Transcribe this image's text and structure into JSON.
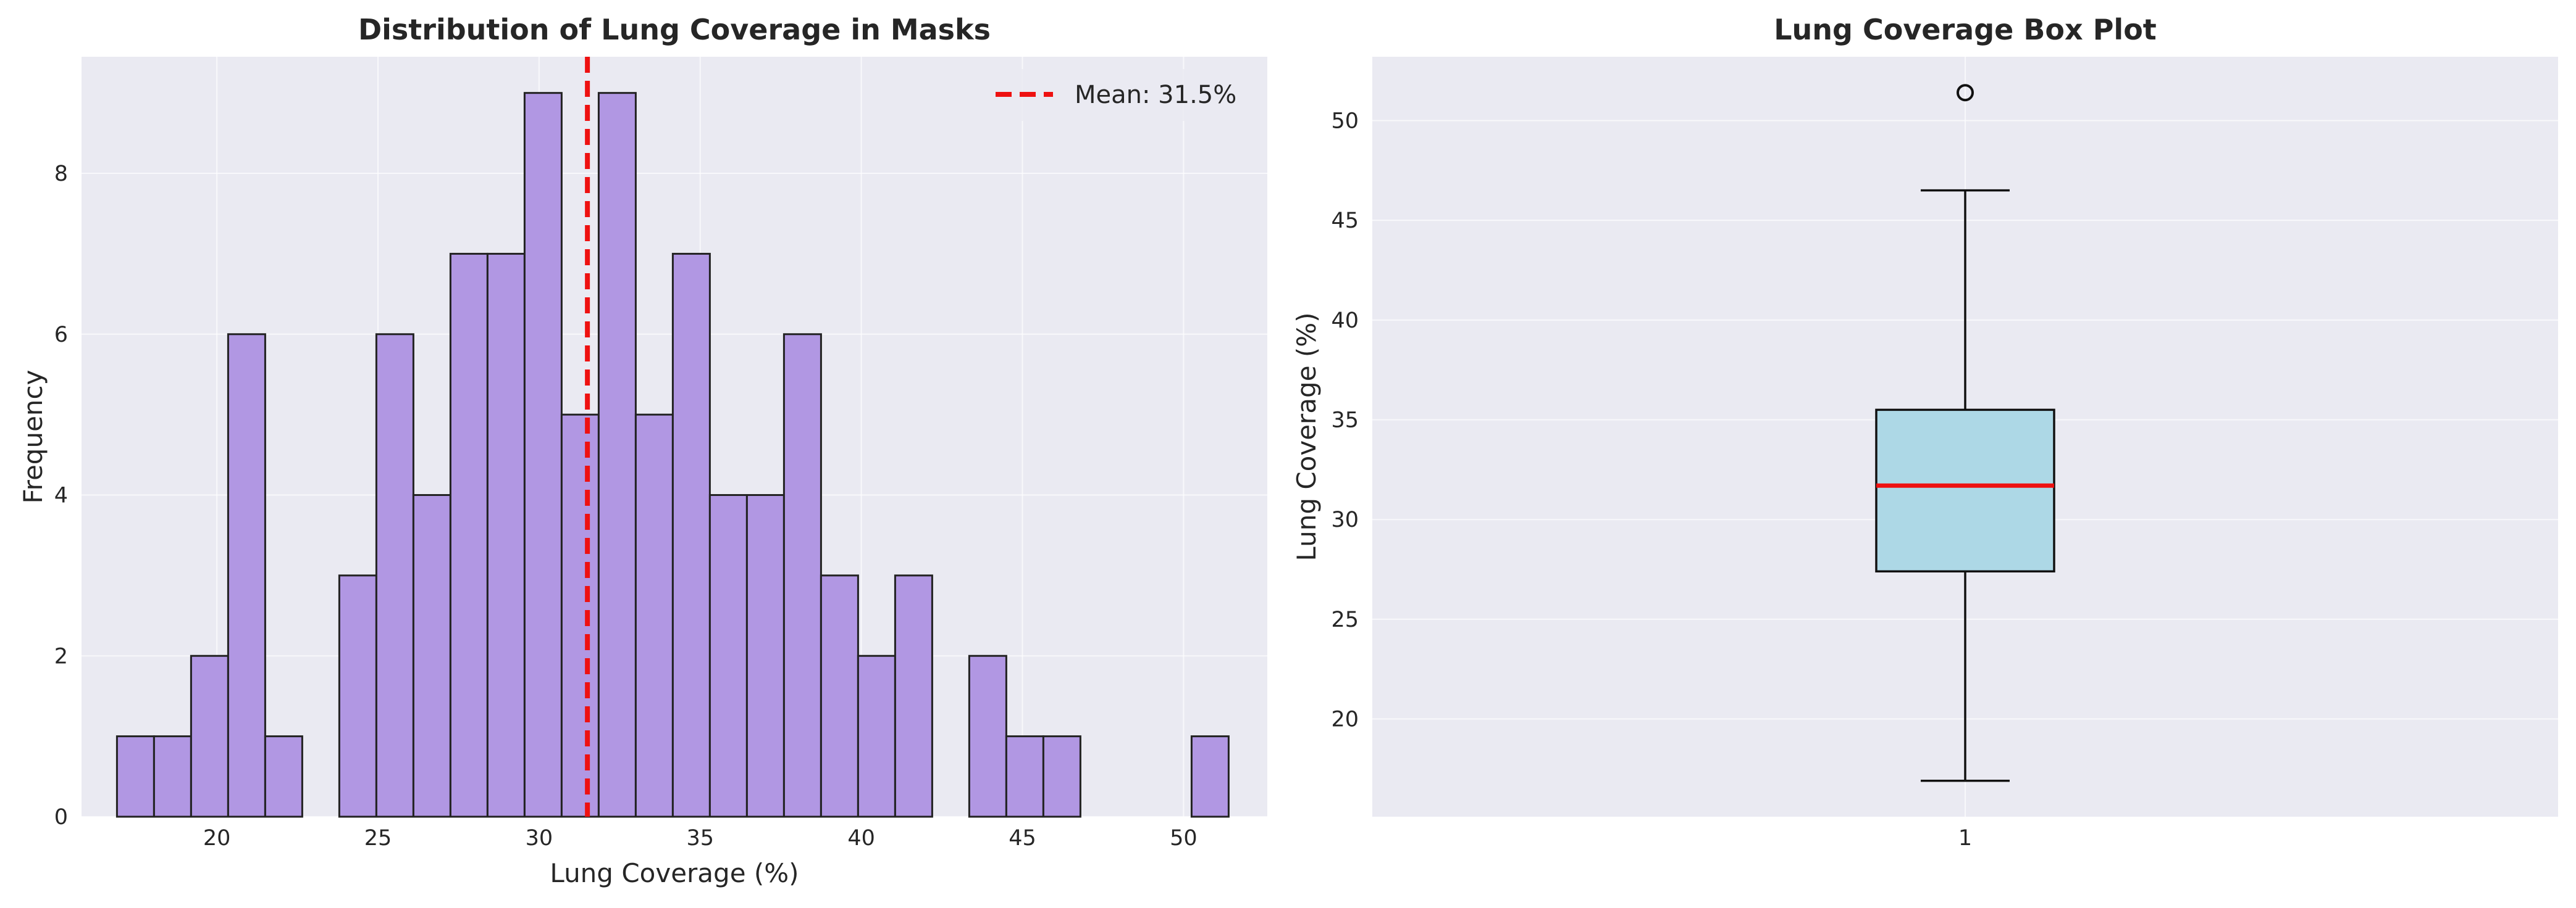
{
  "chart_data": [
    {
      "type": "bar",
      "title": "Distribution of Lung Coverage in Masks",
      "xlabel": "Lung Coverage (%)",
      "ylabel": "Frequency",
      "xlim": [
        15.8,
        52.6
      ],
      "ylim": [
        0,
        9.45
      ],
      "xticks": [
        20,
        25,
        30,
        35,
        40,
        45,
        50
      ],
      "yticks": [
        0,
        2,
        4,
        6,
        8
      ],
      "bin_edges": [
        16.9,
        18.05,
        19.2,
        20.35,
        21.5,
        22.65,
        23.8,
        24.95,
        26.1,
        27.25,
        28.4,
        29.55,
        30.7,
        31.85,
        33.0,
        34.15,
        35.3,
        36.45,
        37.6,
        38.75,
        39.9,
        41.05,
        42.2,
        43.35,
        44.5,
        45.65,
        46.8,
        47.95,
        49.1,
        50.25,
        51.4
      ],
      "counts": [
        1,
        1,
        2,
        6,
        1,
        0,
        3,
        6,
        4,
        7,
        7,
        9,
        5,
        9,
        5,
        7,
        4,
        4,
        6,
        3,
        2,
        3,
        0,
        2,
        1,
        1,
        0,
        0,
        0,
        1
      ],
      "mean_line": {
        "value": 31.5,
        "label": "Mean: 31.5%"
      },
      "legend_position": "top-right",
      "grid": true,
      "colors": {
        "bars": "#b197e3",
        "bar_edge": "#222222",
        "mean_line": "#ee1111",
        "plot_bg": "#eaeaf2"
      }
    },
    {
      "type": "box",
      "title": "Lung Coverage Box Plot",
      "xlabel": "",
      "ylabel": "Lung Coverage (%)",
      "categories": [
        "1"
      ],
      "ylim": [
        15.1,
        53.2
      ],
      "yticks": [
        20,
        25,
        30,
        35,
        40,
        45,
        50
      ],
      "box": {
        "whisker_low": 16.9,
        "q1": 27.4,
        "median": 31.7,
        "q3": 35.5,
        "whisker_high": 46.5,
        "outliers": [
          51.4
        ]
      },
      "grid": true,
      "colors": {
        "box_fill": "#add8e6",
        "median": "#ee1111",
        "plot_bg": "#eaeaf2"
      }
    }
  ]
}
